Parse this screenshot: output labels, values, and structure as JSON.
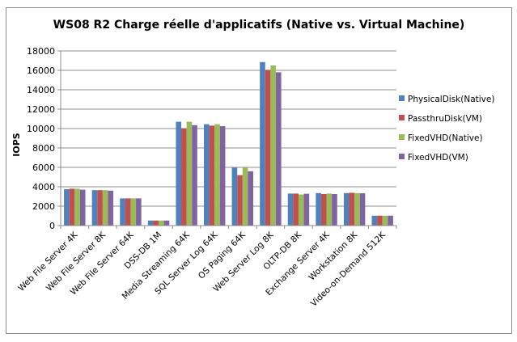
{
  "chart_data": {
    "type": "bar",
    "title": "WS08 R2 Charge réelle d'applicatifs (Native vs. Virtual Machine)",
    "xlabel": "",
    "ylabel": "IOPS",
    "ylim": [
      0,
      18000
    ],
    "yticks": [
      0,
      2000,
      4000,
      6000,
      8000,
      10000,
      12000,
      14000,
      16000,
      18000
    ],
    "ytick_labels": [
      "0",
      "2000",
      "4000",
      "6000",
      "8000",
      "10000",
      "12000",
      "14000",
      "16000",
      "18000"
    ],
    "grid": true,
    "legend_position": "right",
    "categories": [
      "Web File Server 4K",
      "Web File Server 8K",
      "Web File Server 64K",
      "DSS-DB 1M",
      "Media Streaming 64K",
      "SQL Server Log 64K",
      "OS Paging 64K",
      "Web Server Log 8K",
      "OLTP-DB 8K",
      "Exchange Server 4K",
      "Workstation 8K",
      "Video-on-Demand 512K"
    ],
    "series": [
      {
        "name": "PhysicalDisk(Native)",
        "color": "#4f81bd",
        "values": [
          3750,
          3650,
          2800,
          520,
          10700,
          10450,
          5980,
          16850,
          3300,
          3350,
          3350,
          1020
        ]
      },
      {
        "name": "PassthruDisk(VM)",
        "color": "#c0504d",
        "values": [
          3800,
          3650,
          2800,
          520,
          10000,
          10300,
          5200,
          16050,
          3300,
          3250,
          3380,
          1020
        ]
      },
      {
        "name": "FixedVHD(Native)",
        "color": "#9bbb59",
        "values": [
          3800,
          3650,
          2800,
          520,
          10700,
          10450,
          5980,
          16500,
          3200,
          3300,
          3350,
          1020
        ]
      },
      {
        "name": "FixedVHD(VM)",
        "color": "#8064a2",
        "values": [
          3700,
          3600,
          2800,
          520,
          10350,
          10250,
          5600,
          15800,
          3280,
          3250,
          3330,
          1020
        ]
      }
    ]
  }
}
